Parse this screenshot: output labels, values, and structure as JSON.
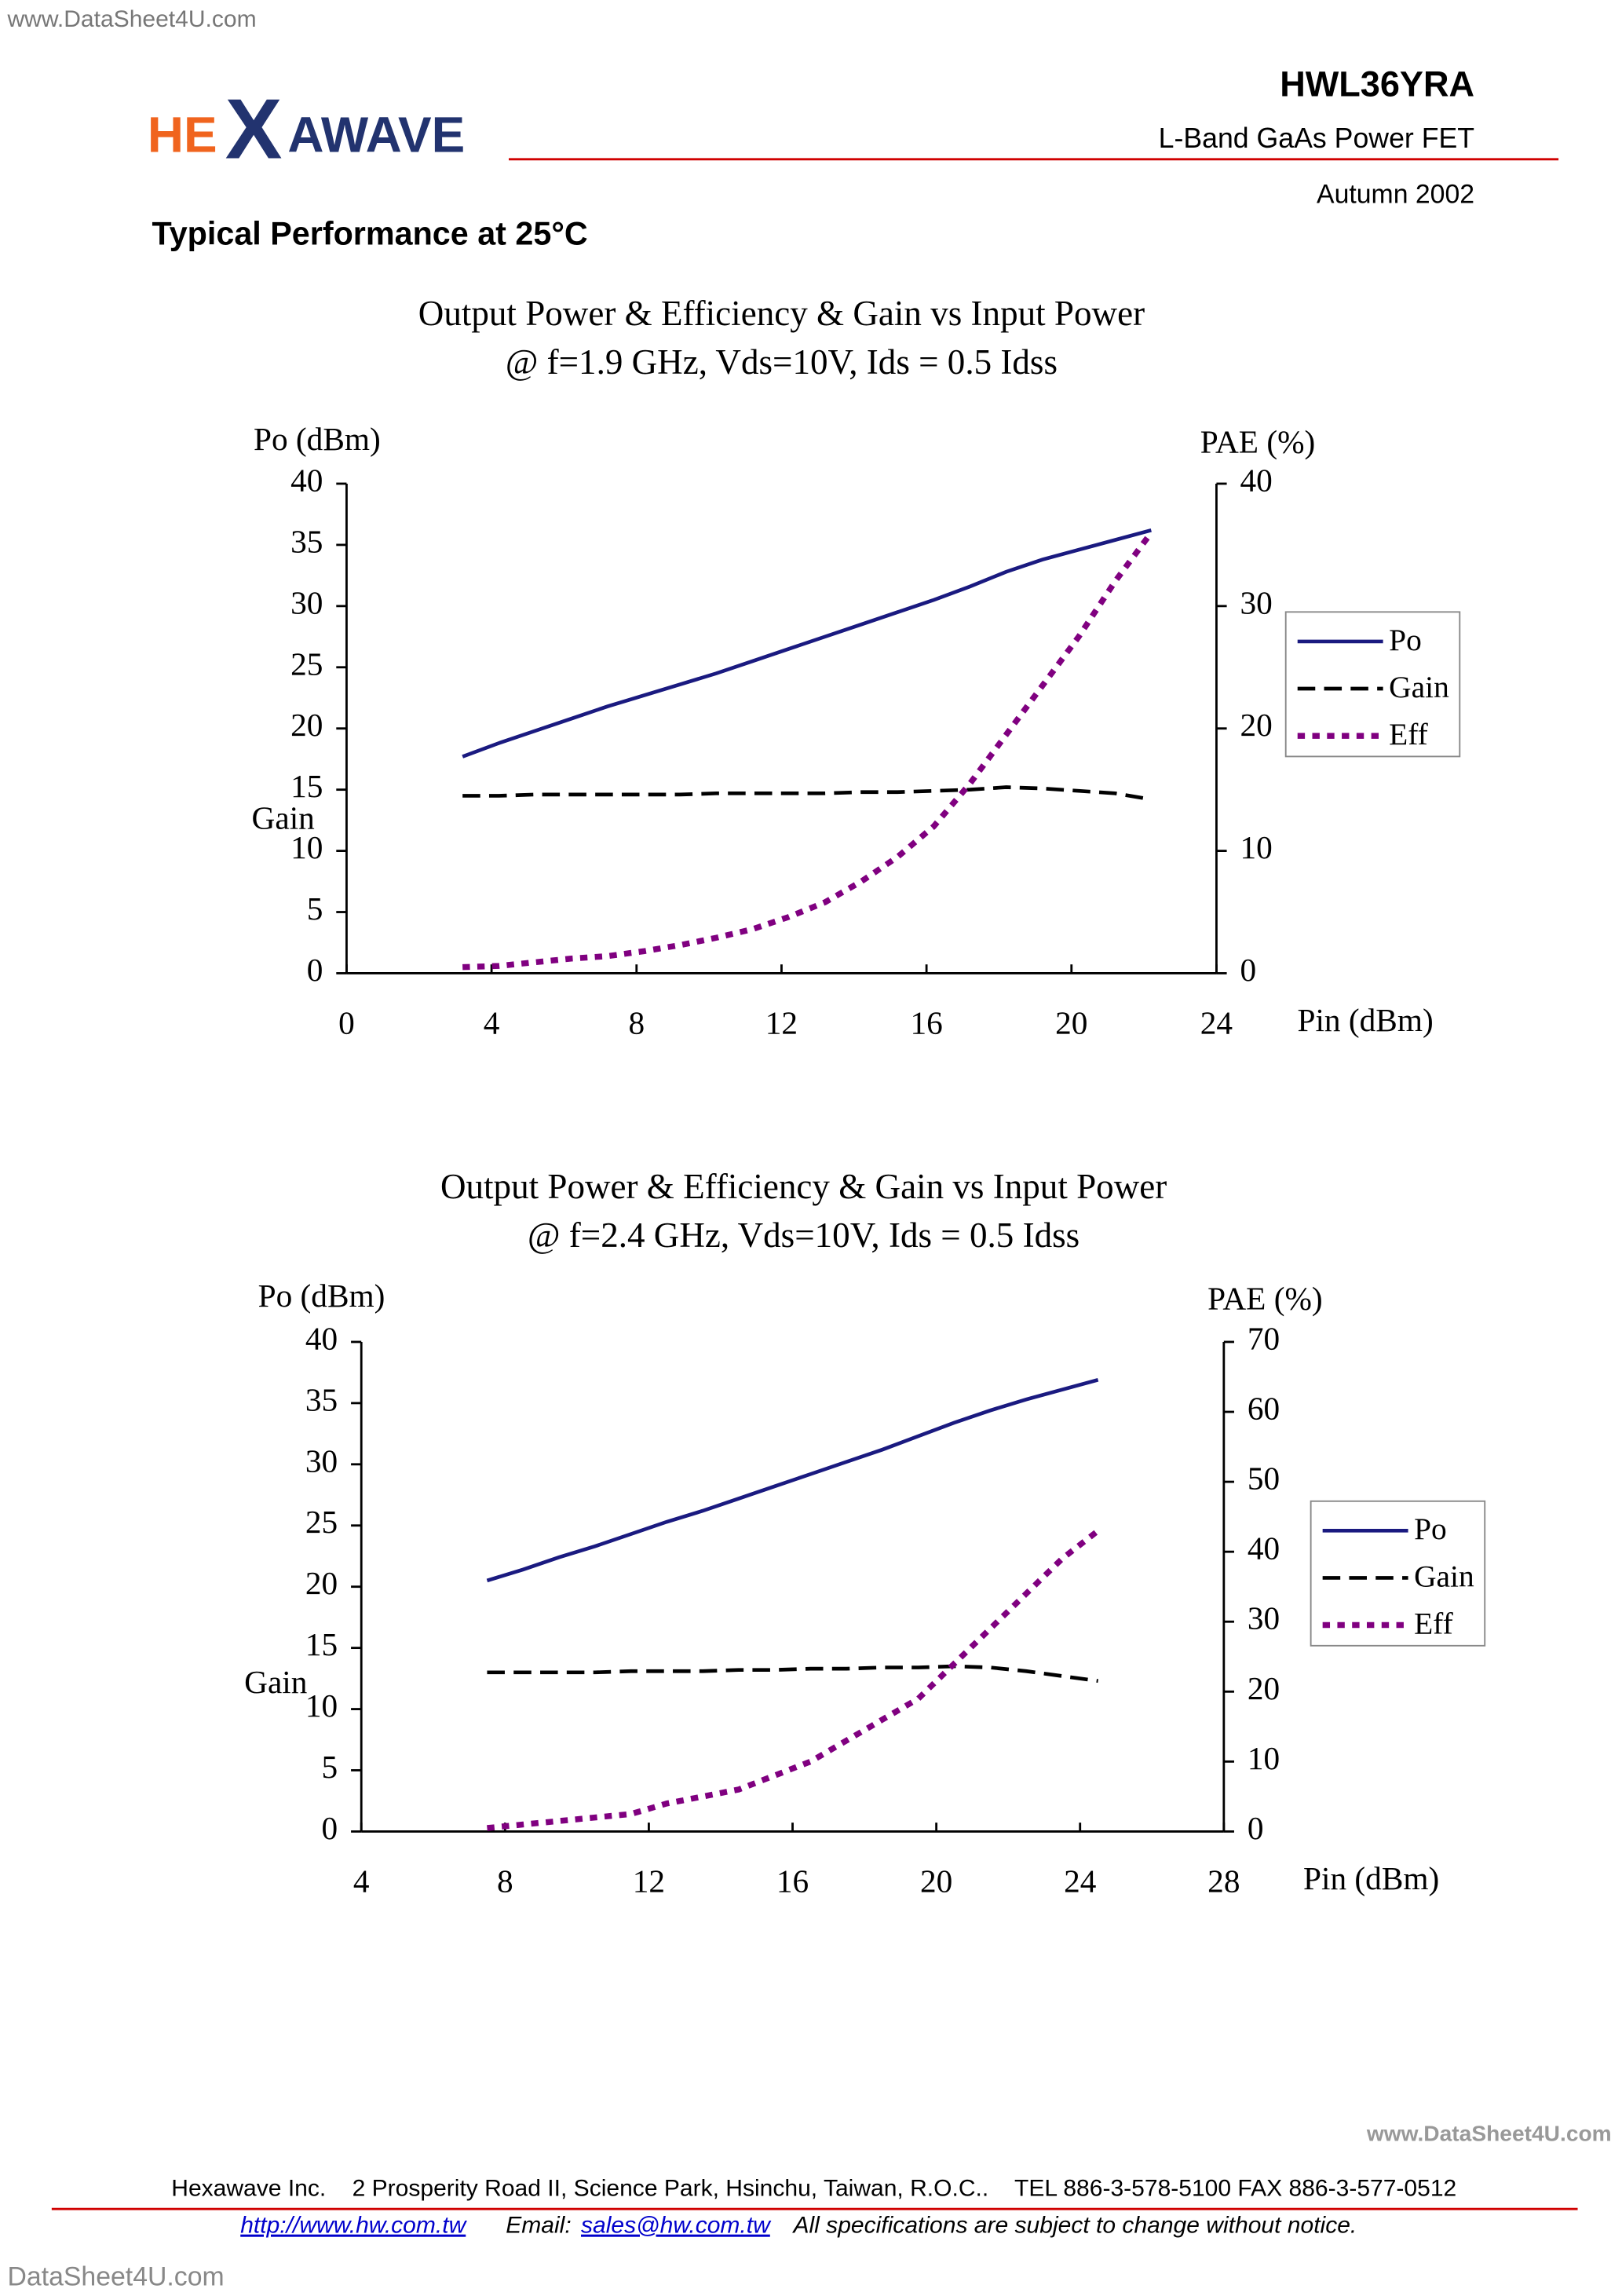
{
  "watermarks": {
    "top": "www.DataSheet4U.com",
    "bottom_right": "www.DataSheet4U.com",
    "bottom_left": "DataSheet4U.com"
  },
  "header": {
    "logo": {
      "left": "HE",
      "mark": "X",
      "right": "AWAVE"
    },
    "part_number": "HWL36YRA",
    "description": "L-Band GaAs Power FET",
    "date": "Autumn 2002"
  },
  "section_title": "Typical Performance at 25°C",
  "chart_data": [
    {
      "type": "line",
      "title": "Output Power & Efficiency & Gain vs Input Power",
      "subtitle": "@ f=1.9 GHz, Vds=10V, Ids = 0.5 Idss",
      "ylabels": [
        "Po (dBm)",
        "Gain"
      ],
      "y2label": "PAE (%)",
      "xlabel": "Pin (dBm)",
      "x": [
        3.2,
        4.2,
        5.2,
        6.2,
        7.2,
        8.2,
        9.2,
        10.2,
        11.2,
        12.2,
        13.2,
        14.2,
        15.2,
        16.2,
        17.2,
        18.2,
        19.2,
        20.2,
        21.2,
        22.2
      ],
      "xlim": [
        0,
        24
      ],
      "xticks": [
        0,
        4,
        8,
        12,
        16,
        20,
        24
      ],
      "ylim": [
        0,
        40
      ],
      "yticks": [
        0,
        5,
        10,
        15,
        20,
        25,
        30,
        35,
        40
      ],
      "y2lim": [
        0,
        40
      ],
      "y2ticks": [
        0,
        10,
        20,
        30,
        40
      ],
      "grid": false,
      "legend": "right",
      "series": [
        {
          "name": "Po",
          "color": "#1a1a80",
          "style": "solid",
          "values": [
            17.7,
            18.8,
            19.8,
            20.8,
            21.8,
            22.7,
            23.6,
            24.5,
            25.5,
            26.5,
            27.5,
            28.5,
            29.5,
            30.5,
            31.6,
            32.8,
            33.8,
            34.6,
            35.4,
            36.2
          ]
        },
        {
          "name": "Gain",
          "color": "#000000",
          "style": "dashed",
          "values": [
            14.5,
            14.5,
            14.6,
            14.6,
            14.6,
            14.6,
            14.6,
            14.7,
            14.7,
            14.7,
            14.7,
            14.8,
            14.8,
            14.9,
            15.0,
            15.2,
            15.1,
            14.9,
            14.7,
            14.2
          ]
        },
        {
          "name": "Eff",
          "color": "#800080",
          "style": "dotted",
          "axis": "y2",
          "values": [
            0.5,
            0.6,
            0.9,
            1.2,
            1.4,
            1.8,
            2.3,
            2.9,
            3.6,
            4.6,
            5.8,
            7.5,
            9.5,
            12.0,
            15.5,
            19.5,
            23.5,
            27.5,
            32.0,
            36.0
          ]
        }
      ]
    },
    {
      "type": "line",
      "title": "Output Power & Efficiency & Gain vs Input Power",
      "subtitle": "@ f=2.4 GHz, Vds=10V, Ids = 0.5 Idss",
      "ylabels": [
        "Po (dBm)",
        "Gain"
      ],
      "y2label": "PAE (%)",
      "xlabel": "Pin (dBm)",
      "x": [
        7.5,
        8.5,
        9.5,
        10.5,
        11.5,
        12.5,
        13.5,
        14.5,
        15.5,
        16.5,
        17.5,
        18.5,
        19.5,
        20.5,
        21.5,
        22.5,
        23.5,
        24.5
      ],
      "xlim": [
        4,
        28
      ],
      "xticks": [
        4,
        8,
        12,
        16,
        20,
        24,
        28
      ],
      "ylim": [
        0,
        40
      ],
      "yticks": [
        0,
        5,
        10,
        15,
        20,
        25,
        30,
        35,
        40
      ],
      "y2lim": [
        0,
        70
      ],
      "y2ticks": [
        0,
        10,
        20,
        30,
        40,
        50,
        60,
        70
      ],
      "grid": false,
      "legend": "right",
      "series": [
        {
          "name": "Po",
          "color": "#1a1a80",
          "style": "solid",
          "values": [
            20.5,
            21.4,
            22.4,
            23.3,
            24.3,
            25.3,
            26.2,
            27.2,
            28.2,
            29.2,
            30.2,
            31.2,
            32.3,
            33.4,
            34.4,
            35.3,
            36.1,
            36.9
          ]
        },
        {
          "name": "Gain",
          "color": "#000000",
          "style": "dashed",
          "values": [
            13.0,
            13.0,
            13.0,
            13.0,
            13.1,
            13.1,
            13.1,
            13.2,
            13.2,
            13.3,
            13.3,
            13.4,
            13.4,
            13.5,
            13.4,
            13.1,
            12.7,
            12.3
          ]
        },
        {
          "name": "Eff",
          "color": "#800080",
          "style": "dotted",
          "axis": "y2",
          "values": [
            0.5,
            1.0,
            1.5,
            2.0,
            2.5,
            4.0,
            5.0,
            6.0,
            8.0,
            10.0,
            13.0,
            16.0,
            19.0,
            24.0,
            29.0,
            34.0,
            39.0,
            43.0
          ]
        }
      ]
    }
  ],
  "footer": {
    "address": "Hexawave Inc.    2 Prosperity Road II, Science Park, Hsinchu, Taiwan, R.O.C..    TEL 886-3-578-5100 FAX 886-3-577-0512",
    "website": "http://www.hw.com.tw",
    "email_label": "Email:",
    "email": "sales@hw.com.tw",
    "notice": "All specifications are subject to change without notice."
  }
}
